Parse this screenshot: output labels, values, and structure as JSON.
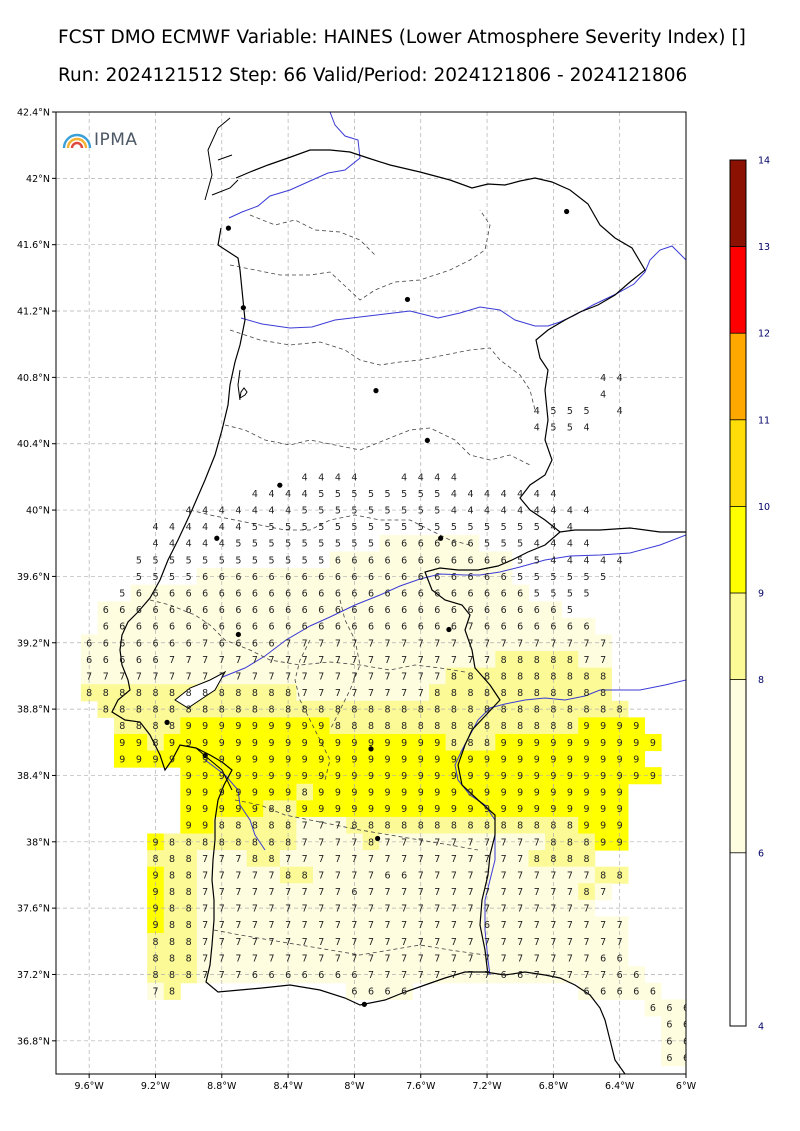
{
  "title": {
    "line1": "FCST DMO ECMWF Variable: HAINES (Lower Atmosphere Severity Index) []",
    "line2": "Run: 2024121512 Step: 66 Valid/Period: 2024121806 - 2024121806"
  },
  "logo": {
    "text": "IPMA",
    "icon": "ipma-rainbow-logo"
  },
  "map": {
    "projection": "plate-carree",
    "lon_range": [
      -9.8,
      -6.0
    ],
    "lat_range": [
      36.6,
      42.4
    ],
    "lat_ticks": [
      "42.4°N",
      "42°N",
      "41.6°N",
      "41.2°N",
      "40.8°N",
      "40.4°N",
      "40°N",
      "39.6°N",
      "39.2°N",
      "38.8°N",
      "38.4°N",
      "38°N",
      "37.6°N",
      "37.2°N",
      "36.8°N"
    ],
    "lon_ticks": [
      "9.6°W",
      "9.2°W",
      "8.8°W",
      "8.4°W",
      "8°W",
      "7.6°W",
      "7.2°W",
      "6.8°W",
      "6.4°W",
      "6°W"
    ],
    "gridlines": true,
    "grid_start": {
      "lon": -9.6,
      "lat": 40.8
    },
    "grid_step": 0.1,
    "haines_grid": [
      "...............................44",
      "...............................4.",
      "...........................4555.4",
      "...........................4554..",
      "................................",
      "................................",
      ".............4444..4444.........",
      "..........4444555555554444444...",
      "......4444444555555555444444444.",
      "....44444455555555555555555544..",
      "....444445555555556666665554444.",
      "...555555555555666666666665544444",
      "...55556666666666666666666555555",
      "..56666666666666666666666665555.",
      ".66666666666666666666666666665..",
      ".666666666666666666666676666666.",
      "66666667666677777777777777777777",
      "66666777777777777777777778888877",
      "77777777777777777777778888888888",
      "88888888888887777777788888888888",
      ".88888888888888888888888888888888",
      "..88889999999998888888888888889999",
      "..998999999999999999998889999999999",
      "..99999999999999999999999999999999",
      "......99999999999999999999999999999",
      "......999999989999999999999999999",
      "......999998899999999999999999999",
      "......998888877788888888888888999",
      "....98888888877778777777777788899",
      "....888777887777777777777778888",
      "....98877777887777667777777777788",
      "....9887777777776777777777777787",
      "....988777777777777777777777777",
      "....98877777777777777777677777777",
      "....88877777777777777777777777777",
      "....88877777777777777777777777766",
      "....888777666666677777777667777766",
      "....78..........6666..........66666",
      "..................................6666",
      "...................................666",
      "...................................666",
      "...................................666"
    ],
    "cities": [
      {
        "lon": -8.76,
        "lat": 41.7
      },
      {
        "lon": -8.67,
        "lat": 41.22
      },
      {
        "lon": -7.68,
        "lat": 41.27
      },
      {
        "lon": -6.72,
        "lat": 41.8
      },
      {
        "lon": -7.87,
        "lat": 40.72
      },
      {
        "lon": -7.56,
        "lat": 40.42
      },
      {
        "lon": -8.45,
        "lat": 40.15
      },
      {
        "lon": -8.83,
        "lat": 39.83
      },
      {
        "lon": -7.48,
        "lat": 39.83
      },
      {
        "lon": -8.7,
        "lat": 39.25
      },
      {
        "lon": -7.43,
        "lat": 39.28
      },
      {
        "lon": -8.9,
        "lat": 38.52
      },
      {
        "lon": -7.9,
        "lat": 38.56
      },
      {
        "lon": -7.86,
        "lat": 38.02
      },
      {
        "lon": -7.94,
        "lat": 37.02
      },
      {
        "lon": -9.13,
        "lat": 38.72
      }
    ]
  },
  "colorbar": {
    "ticks": [
      "4",
      "6",
      "8",
      "9",
      "10",
      "11",
      "12",
      "13",
      "14"
    ],
    "bands": [
      {
        "from": 4,
        "to": 6,
        "color": "#ffffff"
      },
      {
        "from": 6,
        "to": 8,
        "color": "#fefde0"
      },
      {
        "from": 8,
        "to": 9,
        "color": "#fbfa96"
      },
      {
        "from": 9,
        "to": 10,
        "color": "#ffff00"
      },
      {
        "from": 10,
        "to": 11,
        "color": "#fedd08"
      },
      {
        "from": 11,
        "to": 12,
        "color": "#ffa800"
      },
      {
        "from": 12,
        "to": 13,
        "color": "#ff0000"
      },
      {
        "from": 13,
        "to": 14,
        "color": "#8b1203"
      }
    ]
  },
  "colors": {
    "river": "#3b3bd6",
    "coast": "#000000",
    "districts": "#444444"
  }
}
